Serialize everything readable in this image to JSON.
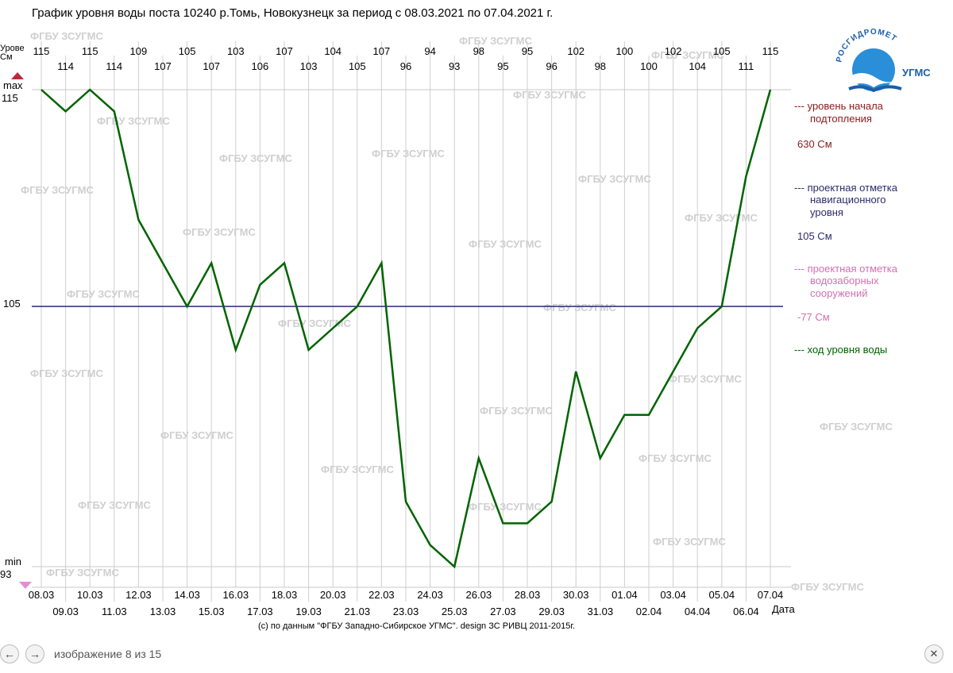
{
  "title": "График уровня воды поста 10240 р.Томь, Новокузнецк за период с 08.03.2021 по 07.04.2021 г.",
  "watermark": "ФГБУ ЗСУГМС",
  "logo": {
    "arc_text": "РОСГИДРОМЕТ",
    "side_text": "УГМС"
  },
  "credit": "(c) по данным \"ФГБУ Западно-Сибирское УГМС\". design ЗС РИВЦ 2011-2015г.",
  "viewer": {
    "caption": "изображение 8 из 15",
    "prev_icon": "←",
    "next_icon": "→",
    "close_icon": "✕"
  },
  "axis": {
    "y_label_line1": "Урове",
    "y_label_line2": "См",
    "x_label": "Дата",
    "max_label": "max",
    "max_value": "115",
    "min_label": "min",
    "min_value": "93",
    "ref_value": "105"
  },
  "legend": {
    "flood_line1": "--- уровень начала",
    "flood_line2": "подтопления",
    "flood_value": "630 См",
    "nav_line1": "--- проектная отметка",
    "nav_line2": "навигационного",
    "nav_line3": "уровня",
    "nav_value": "105 См",
    "intake_line1": "--- проектная отметка",
    "intake_line2": "водозаборных",
    "intake_line3": "сооружений",
    "intake_value": "-77 См",
    "water_line": "--- ход уровня воды"
  },
  "colors": {
    "water": "#006400",
    "nav": "#2b2b6b",
    "flood": "#8b1a1a",
    "intake": "#d36fb0",
    "grid": "#cfcfcf"
  },
  "chart_data": {
    "type": "line",
    "title": "График уровня воды поста 10240 р.Томь, Новокузнецк за период с 08.03.2021 по 07.04.2021 г.",
    "xlabel": "Дата",
    "ylabel": "Урове См",
    "ylim": [
      93,
      115
    ],
    "x": [
      "08.03",
      "09.03",
      "10.03",
      "11.03",
      "12.03",
      "13.03",
      "14.03",
      "15.03",
      "16.03",
      "17.03",
      "18.03",
      "19.03",
      "20.03",
      "21.03",
      "22.03",
      "23.03",
      "24.03",
      "25.03",
      "26.03",
      "27.03",
      "28.03",
      "29.03",
      "30.03",
      "31.03",
      "01.04",
      "02.04",
      "03.04",
      "04.04",
      "05.04",
      "06.04",
      "07.04"
    ],
    "series": [
      {
        "name": "ход уровня воды",
        "values": [
          115,
          114,
          115,
          114,
          109,
          107,
          105,
          107,
          103,
          106,
          107,
          103,
          104,
          105,
          107,
          96,
          94,
          93,
          98,
          95,
          95,
          96,
          102,
          98,
          100,
          100,
          102,
          104,
          105,
          111,
          115
        ]
      }
    ],
    "reference_lines": [
      {
        "name": "проектная отметка навигационного уровня",
        "value": 105
      }
    ],
    "grid": true,
    "legend_placement": "right"
  }
}
